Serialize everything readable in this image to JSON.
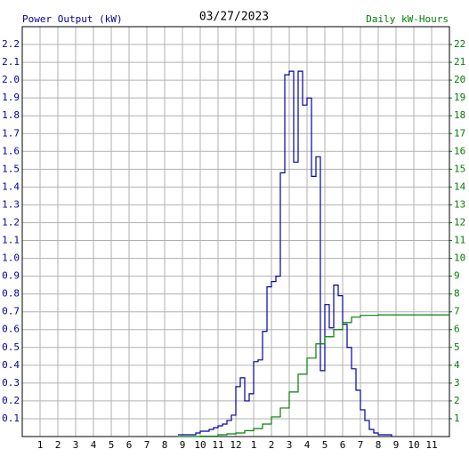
{
  "chart_data": {
    "type": "line",
    "title": "03/27/2023",
    "y_label": "Power Output (kW)",
    "y2_label": "Daily kW-Hours",
    "xlim": [
      0,
      24
    ],
    "xticks": [
      1,
      2,
      3,
      4,
      5,
      6,
      7,
      8,
      9,
      10,
      11,
      12,
      {
        "value": 13,
        "label": "1"
      },
      {
        "value": 14,
        "label": "2"
      },
      {
        "value": 15,
        "label": "3"
      },
      {
        "value": 16,
        "label": "4"
      },
      {
        "value": 17,
        "label": "5"
      },
      {
        "value": 18,
        "label": "6"
      },
      {
        "value": 19,
        "label": "7"
      },
      {
        "value": 20,
        "label": "8"
      },
      {
        "value": 21,
        "label": "9"
      },
      {
        "value": 22,
        "label": "10"
      },
      {
        "value": 23,
        "label": "11"
      }
    ],
    "ylim": [
      0,
      2.3
    ],
    "yticks": [
      0.1,
      0.2,
      0.3,
      0.4,
      0.5,
      0.6,
      0.7,
      0.8,
      0.9,
      {
        "value": 1,
        "label": "1.0"
      },
      1.1,
      1.2,
      1.3,
      1.4,
      1.5,
      1.6,
      1.7,
      1.8,
      1.9,
      {
        "value": 2,
        "label": "2.0"
      },
      2.1,
      2.2
    ],
    "y2lim": [
      0,
      23
    ],
    "y2ticks": [
      1,
      2,
      3,
      4,
      5,
      6,
      7,
      8,
      9,
      10,
      11,
      12,
      13,
      14,
      15,
      16,
      17,
      18,
      19,
      20,
      21,
      22
    ],
    "grid": true,
    "series": [
      {
        "color": "#0000a0",
        "x": [
          8.75,
          9,
          9.25,
          9.5,
          9.75,
          10,
          10.25,
          10.5,
          10.75,
          11,
          11.25,
          11.5,
          11.75,
          12,
          12.25,
          12.5,
          12.75,
          13,
          13.25,
          13.5,
          13.75,
          14,
          14.25,
          14.5,
          14.75,
          15,
          15.25,
          15.5,
          15.75,
          16,
          16.25,
          16.5,
          16.75,
          17,
          17.25,
          17.5,
          17.75,
          18,
          18.25,
          18.5,
          18.75,
          19,
          19.25,
          19.5,
          19.75,
          20,
          20.25,
          20.5,
          20.75
        ],
        "values": [
          0.01,
          0.01,
          0.01,
          0.01,
          0.02,
          0.03,
          0.03,
          0.04,
          0.05,
          0.06,
          0.07,
          0.09,
          0.12,
          0.28,
          0.33,
          0.2,
          0.24,
          0.42,
          0.43,
          0.59,
          0.84,
          0.87,
          0.9,
          1.48,
          2.03,
          2.05,
          1.54,
          2.05,
          1.86,
          1.9,
          1.46,
          1.57,
          0.37,
          0.74,
          0.61,
          0.85,
          0.79,
          0.63,
          0.5,
          0.38,
          0.26,
          0.15,
          0.09,
          0.04,
          0.02,
          0.01,
          0.01,
          0.01,
          0
        ]
      },
      {
        "color": "#008000",
        "axis": "y2",
        "x": [
          8.75,
          10,
          11,
          11.5,
          12,
          12.5,
          13,
          13.5,
          14,
          14.5,
          15,
          15.5,
          16,
          16.5,
          17,
          17.5,
          18,
          18.5,
          19,
          20,
          24
        ],
        "values": [
          0,
          0.02,
          0.1,
          0.15,
          0.2,
          0.33,
          0.45,
          0.7,
          1.1,
          1.6,
          2.5,
          3.5,
          4.4,
          5.2,
          5.6,
          6,
          6.4,
          6.7,
          6.8,
          6.83,
          6.83
        ]
      }
    ]
  }
}
